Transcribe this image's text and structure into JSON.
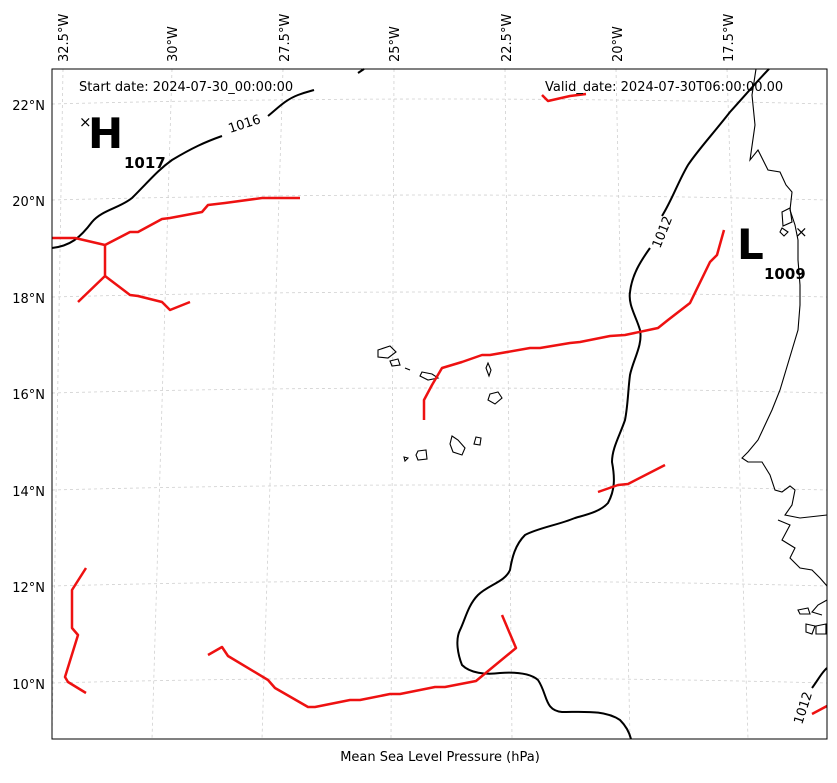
{
  "header": {
    "start_label": "Start date: 2024-07-30_00:00:00",
    "valid_label": "Valid_date: 2024-07-30T06:00:00.00"
  },
  "caption": "Mean Sea Level Pressure (hPa)",
  "lon_ticks": [
    "32.5°W",
    "30°W",
    "27.5°W",
    "25°W",
    "22.5°W",
    "20°W",
    "17.5°W"
  ],
  "lat_ticks": [
    "22°N",
    "20°N",
    "18°N",
    "16°N",
    "14°N",
    "12°N",
    "10°N"
  ],
  "isobar_labels": [
    "1016",
    "1012",
    "1012"
  ],
  "centers": [
    {
      "letter": "H",
      "value": "1017"
    },
    {
      "letter": "L",
      "value": "1009"
    }
  ],
  "colors": {
    "isobar": "#000000",
    "trough": "#ee1111",
    "coast": "#000000",
    "grid": "#d0d0d0"
  }
}
